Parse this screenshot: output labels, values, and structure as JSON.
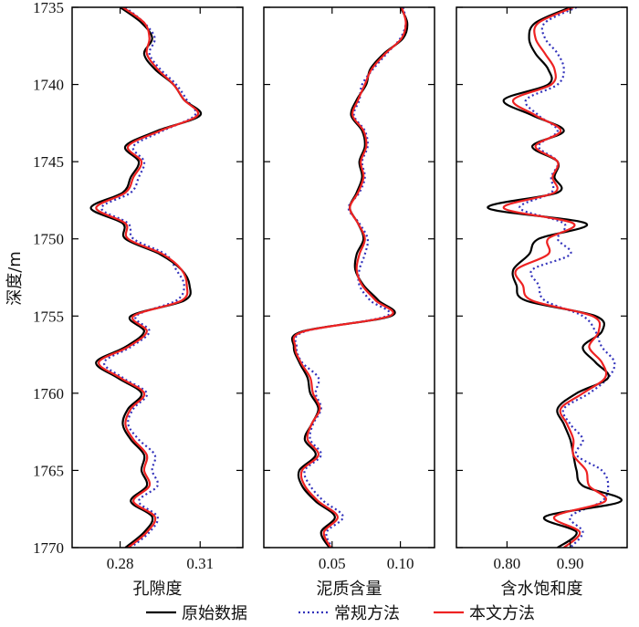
{
  "chart_data": {
    "type": "line",
    "ylabel": "深度/m",
    "ylim": [
      1735,
      1770
    ],
    "yticks": [
      1735,
      1740,
      1745,
      1750,
      1755,
      1760,
      1765,
      1770
    ],
    "y_inverted": true,
    "grid": false,
    "legend_position": "bottom",
    "series_styles": [
      {
        "name": "原始数据",
        "color": "#000000",
        "dash": "solid"
      },
      {
        "name": "常规方法",
        "color": "#3333bb",
        "dash": "dotted"
      },
      {
        "name": "本文方法",
        "color": "#ee2222",
        "dash": "solid"
      }
    ],
    "panels": [
      {
        "xlabel": "孔隙度",
        "xlim": [
          0.262,
          0.326
        ],
        "xticks": [
          0.28,
          0.31
        ],
        "xtick_labels": [
          "0.28",
          "0.31"
        ],
        "series": [
          {
            "name": "原始数据",
            "depth": [
              1735,
              1736,
              1737,
              1738,
              1739,
              1740,
              1741,
              1742,
              1743,
              1744,
              1745,
              1746,
              1747,
              1748,
              1749,
              1750,
              1751,
              1752,
              1753,
              1754,
              1755,
              1756,
              1757,
              1758,
              1759,
              1760,
              1761,
              1762,
              1763,
              1764,
              1765,
              1766,
              1767,
              1768,
              1769,
              1770
            ],
            "values": [
              0.28,
              0.288,
              0.292,
              0.289,
              0.293,
              0.3,
              0.304,
              0.31,
              0.294,
              0.282,
              0.287,
              0.284,
              0.281,
              0.269,
              0.281,
              0.282,
              0.295,
              0.303,
              0.306,
              0.304,
              0.284,
              0.289,
              0.282,
              0.271,
              0.279,
              0.288,
              0.283,
              0.281,
              0.284,
              0.289,
              0.288,
              0.29,
              0.284,
              0.292,
              0.289,
              0.282
            ]
          },
          {
            "name": "常规方法",
            "depth": [
              1735,
              1736,
              1737,
              1738,
              1739,
              1740,
              1741,
              1742,
              1743,
              1744,
              1745,
              1746,
              1747,
              1748,
              1749,
              1750,
              1751,
              1752,
              1753,
              1754,
              1755,
              1756,
              1757,
              1758,
              1759,
              1760,
              1761,
              1762,
              1763,
              1764,
              1765,
              1766,
              1767,
              1768,
              1769,
              1770
            ],
            "values": [
              0.282,
              0.289,
              0.293,
              0.291,
              0.295,
              0.301,
              0.305,
              0.308,
              0.296,
              0.285,
              0.289,
              0.287,
              0.284,
              0.273,
              0.283,
              0.285,
              0.297,
              0.301,
              0.304,
              0.301,
              0.286,
              0.291,
              0.284,
              0.274,
              0.281,
              0.29,
              0.285,
              0.283,
              0.287,
              0.293,
              0.292,
              0.294,
              0.287,
              0.294,
              0.291,
              0.284
            ]
          },
          {
            "name": "本文方法",
            "depth": [
              1735,
              1736,
              1737,
              1738,
              1739,
              1740,
              1741,
              1742,
              1743,
              1744,
              1745,
              1746,
              1747,
              1748,
              1749,
              1750,
              1751,
              1752,
              1753,
              1754,
              1755,
              1756,
              1757,
              1758,
              1759,
              1760,
              1761,
              1762,
              1763,
              1764,
              1765,
              1766,
              1767,
              1768,
              1769,
              1770
            ],
            "values": [
              0.281,
              0.289,
              0.291,
              0.29,
              0.294,
              0.3,
              0.304,
              0.309,
              0.295,
              0.283,
              0.288,
              0.285,
              0.282,
              0.271,
              0.282,
              0.283,
              0.296,
              0.303,
              0.305,
              0.303,
              0.285,
              0.29,
              0.283,
              0.272,
              0.28,
              0.289,
              0.284,
              0.282,
              0.285,
              0.29,
              0.289,
              0.291,
              0.285,
              0.293,
              0.29,
              0.283
            ]
          }
        ]
      },
      {
        "xlabel": "泥质含量",
        "xlim": [
          0.0,
          0.125
        ],
        "xticks": [
          0.05,
          0.1
        ],
        "xtick_labels": [
          "0.05",
          "0.10"
        ],
        "series": [
          {
            "name": "原始数据",
            "depth": [
              1735,
              1736,
              1737,
              1738,
              1739,
              1740,
              1741,
              1742,
              1743,
              1744,
              1745,
              1746,
              1747,
              1748,
              1749,
              1750,
              1751,
              1752,
              1753,
              1754,
              1755,
              1756,
              1757,
              1758,
              1759,
              1760,
              1761,
              1762,
              1763,
              1764,
              1765,
              1766,
              1767,
              1768,
              1769,
              1770
            ],
            "values": [
              0.1,
              0.105,
              0.102,
              0.088,
              0.078,
              0.075,
              0.068,
              0.064,
              0.072,
              0.074,
              0.07,
              0.072,
              0.068,
              0.063,
              0.069,
              0.073,
              0.068,
              0.067,
              0.073,
              0.084,
              0.093,
              0.028,
              0.022,
              0.026,
              0.032,
              0.034,
              0.04,
              0.035,
              0.03,
              0.038,
              0.026,
              0.028,
              0.038,
              0.052,
              0.042,
              0.048
            ]
          },
          {
            "name": "常规方法",
            "depth": [
              1735,
              1736,
              1737,
              1738,
              1739,
              1740,
              1741,
              1742,
              1743,
              1744,
              1745,
              1746,
              1747,
              1748,
              1749,
              1750,
              1751,
              1752,
              1753,
              1754,
              1755,
              1756,
              1757,
              1758,
              1759,
              1760,
              1761,
              1762,
              1763,
              1764,
              1765,
              1766,
              1767,
              1768,
              1769,
              1770
            ],
            "values": [
              0.102,
              0.104,
              0.1,
              0.09,
              0.08,
              0.072,
              0.07,
              0.066,
              0.074,
              0.076,
              0.072,
              0.074,
              0.07,
              0.062,
              0.07,
              0.076,
              0.074,
              0.07,
              0.07,
              0.078,
              0.09,
              0.03,
              0.024,
              0.028,
              0.04,
              0.038,
              0.042,
              0.036,
              0.034,
              0.042,
              0.03,
              0.034,
              0.044,
              0.058,
              0.046,
              0.05
            ]
          },
          {
            "name": "本文方法",
            "depth": [
              1735,
              1736,
              1737,
              1738,
              1739,
              1740,
              1741,
              1742,
              1743,
              1744,
              1745,
              1746,
              1747,
              1748,
              1749,
              1750,
              1751,
              1752,
              1753,
              1754,
              1755,
              1756,
              1757,
              1758,
              1759,
              1760,
              1761,
              1762,
              1763,
              1764,
              1765,
              1766,
              1767,
              1768,
              1769,
              1770
            ],
            "values": [
              0.101,
              0.104,
              0.101,
              0.089,
              0.079,
              0.074,
              0.069,
              0.065,
              0.073,
              0.075,
              0.071,
              0.073,
              0.069,
              0.063,
              0.069,
              0.074,
              0.07,
              0.068,
              0.072,
              0.082,
              0.092,
              0.029,
              0.023,
              0.027,
              0.034,
              0.036,
              0.041,
              0.035,
              0.032,
              0.04,
              0.028,
              0.03,
              0.04,
              0.054,
              0.044,
              0.049
            ]
          }
        ]
      },
      {
        "xlabel": "含水饱和度",
        "xlim": [
          0.72,
          0.99
        ],
        "xticks": [
          0.8,
          0.9
        ],
        "xtick_labels": [
          "0.80",
          "0.90"
        ],
        "series": [
          {
            "name": "原始数据",
            "depth": [
              1735,
              1736,
              1737,
              1738,
              1739,
              1740,
              1741,
              1742,
              1743,
              1744,
              1745,
              1746,
              1747,
              1748,
              1749,
              1750,
              1751,
              1752,
              1753,
              1754,
              1755,
              1756,
              1757,
              1758,
              1759,
              1760,
              1761,
              1762,
              1763,
              1764,
              1765,
              1766,
              1767,
              1768,
              1769,
              1770
            ],
            "values": [
              0.9,
              0.845,
              0.835,
              0.845,
              0.865,
              0.865,
              0.795,
              0.84,
              0.89,
              0.84,
              0.88,
              0.875,
              0.88,
              0.77,
              0.925,
              0.85,
              0.835,
              0.81,
              0.815,
              0.83,
              0.94,
              0.95,
              0.92,
              0.94,
              0.96,
              0.91,
              0.88,
              0.89,
              0.9,
              0.905,
              0.91,
              0.92,
              0.98,
              0.86,
              0.91,
              0.88
            ]
          },
          {
            "name": "常规方法",
            "depth": [
              1735,
              1736,
              1737,
              1738,
              1739,
              1740,
              1741,
              1742,
              1743,
              1744,
              1745,
              1746,
              1747,
              1748,
              1749,
              1750,
              1751,
              1752,
              1753,
              1754,
              1755,
              1756,
              1757,
              1758,
              1759,
              1760,
              1761,
              1762,
              1763,
              1764,
              1765,
              1766,
              1767,
              1768,
              1769,
              1770
            ],
            "values": [
              0.91,
              0.86,
              0.86,
              0.88,
              0.89,
              0.88,
              0.83,
              0.85,
              0.88,
              0.85,
              0.88,
              0.87,
              0.87,
              0.82,
              0.89,
              0.88,
              0.9,
              0.84,
              0.85,
              0.86,
              0.92,
              0.94,
              0.95,
              0.97,
              0.96,
              0.93,
              0.89,
              0.9,
              0.92,
              0.91,
              0.95,
              0.96,
              0.95,
              0.9,
              0.92,
              0.9
            ]
          },
          {
            "name": "本文方法",
            "depth": [
              1735,
              1736,
              1737,
              1738,
              1739,
              1740,
              1741,
              1742,
              1743,
              1744,
              1745,
              1746,
              1747,
              1748,
              1749,
              1750,
              1751,
              1752,
              1753,
              1754,
              1755,
              1756,
              1757,
              1758,
              1759,
              1760,
              1761,
              1762,
              1763,
              1764,
              1765,
              1766,
              1767,
              1768,
              1769,
              1770
            ],
            "values": [
              0.905,
              0.85,
              0.845,
              0.86,
              0.875,
              0.87,
              0.81,
              0.845,
              0.885,
              0.845,
              0.88,
              0.872,
              0.875,
              0.795,
              0.905,
              0.865,
              0.865,
              0.815,
              0.825,
              0.84,
              0.935,
              0.945,
              0.93,
              0.95,
              0.955,
              0.92,
              0.885,
              0.895,
              0.905,
              0.905,
              0.925,
              0.93,
              0.955,
              0.875,
              0.915,
              0.89
            ]
          }
        ]
      }
    ]
  }
}
